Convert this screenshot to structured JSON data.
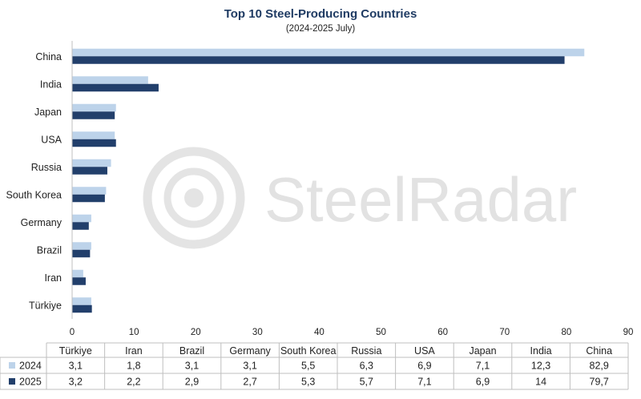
{
  "watermark": "SteelRadar",
  "colors": {
    "series_2024": "#bdd3ea",
    "series_2025": "#223f6b",
    "title": "#1f3b63"
  },
  "chart_data": {
    "type": "bar",
    "orientation": "horizontal",
    "title": "Top 10 Steel-Producing Countries",
    "subtitle": "(2024-2025 July)",
    "categories": [
      "China",
      "India",
      "Japan",
      "USA",
      "Russia",
      "South Korea",
      "Germany",
      "Brazil",
      "Iran",
      "Türkiye"
    ],
    "series": [
      {
        "name": "2024",
        "values": [
          82.9,
          12.3,
          7.1,
          6.9,
          6.3,
          5.5,
          3.1,
          3.1,
          1.8,
          3.1
        ]
      },
      {
        "name": "2025",
        "values": [
          79.7,
          14,
          6.9,
          7.1,
          5.7,
          5.3,
          2.7,
          2.9,
          2.2,
          3.2
        ]
      }
    ],
    "xlim": [
      0,
      90
    ],
    "xticks": [
      "0",
      "10",
      "20",
      "30",
      "40",
      "50",
      "60",
      "70",
      "80",
      "90"
    ],
    "grid": false,
    "data_table": {
      "columns": [
        "Türkiye",
        "Iran",
        "Brazil",
        "Germany",
        "South Korea",
        "Russia",
        "USA",
        "Japan",
        "India",
        "China"
      ],
      "rows": [
        {
          "label": "2024",
          "cells": [
            "3,1",
            "1,8",
            "3,1",
            "3,1",
            "5,5",
            "6,3",
            "6,9",
            "7,1",
            "12,3",
            "82,9"
          ]
        },
        {
          "label": "2025",
          "cells": [
            "3,2",
            "2,2",
            "2,9",
            "2,7",
            "5,3",
            "5,7",
            "7,1",
            "6,9",
            "14",
            "79,7"
          ]
        }
      ]
    }
  }
}
